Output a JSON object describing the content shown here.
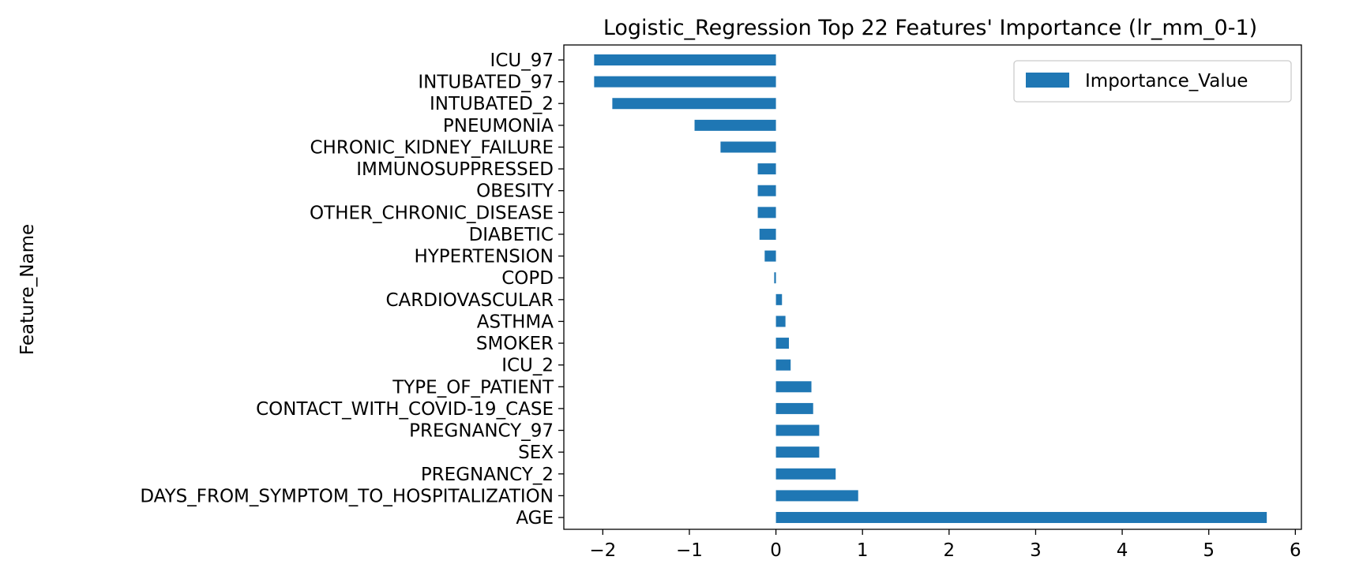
{
  "chart_data": {
    "type": "bar",
    "orientation": "horizontal",
    "title": "Logistic_Regression Top 22 Features' Importance (lr_mm_0-1)",
    "xlabel": "",
    "ylabel": "Feature_Name",
    "xlim": [
      -2.45,
      6.07
    ],
    "xticks": [
      -2,
      -1,
      0,
      1,
      2,
      3,
      4,
      5,
      6
    ],
    "xtick_labels": [
      "−2",
      "−1",
      "0",
      "1",
      "2",
      "3",
      "4",
      "5",
      "6"
    ],
    "grid": false,
    "legend": {
      "position": "top-right",
      "entries": [
        "Importance_Value"
      ]
    },
    "color": "#1f77b4",
    "categories": [
      "ICU_97",
      "INTUBATED_97",
      "INTUBATED_2",
      "PNEUMONIA",
      "CHRONIC_KIDNEY_FAILURE",
      "IMMUNOSUPPRESSED",
      "OBESITY",
      "OTHER_CHRONIC_DISEASE",
      "DIABETIC",
      "HYPERTENSION",
      "COPD",
      "CARDIOVASCULAR",
      "ASTHMA",
      "SMOKER",
      "ICU_2",
      "TYPE_OF_PATIENT",
      "CONTACT_WITH_COVID-19_CASE",
      "PREGNANCY_97",
      "SEX",
      "PREGNANCY_2",
      "DAYS_FROM_SYMPTOM_TO_HOSPITALIZATION",
      "AGE"
    ],
    "series": [
      {
        "name": "Importance_Value",
        "values": [
          -2.1,
          -2.1,
          -1.89,
          -0.94,
          -0.64,
          -0.21,
          -0.21,
          -0.21,
          -0.19,
          -0.13,
          -0.02,
          0.07,
          0.11,
          0.15,
          0.17,
          0.41,
          0.43,
          0.5,
          0.5,
          0.69,
          0.95,
          5.67
        ]
      }
    ]
  }
}
